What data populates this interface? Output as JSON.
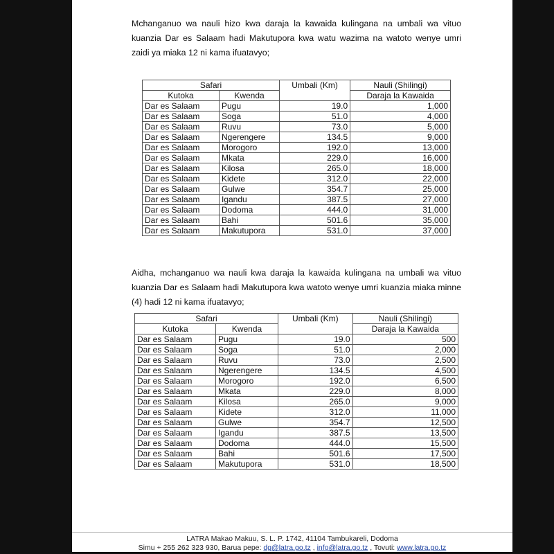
{
  "paragraph1": "Mchanganuo wa nauli hizo kwa daraja la kawaida kulingana na umbali wa vituo kuanzia Dar es Salaam hadi Makutupora kwa watu wazima na watoto wenye umri zaidi ya miaka 12 ni kama ifuatavyo;",
  "paragraph2": "Aidha, mchanganuo wa nauli kwa daraja la kawaida kulingana na umbali wa vituo kuanzia Dar es Salaam hadi Makutupora kwa  watoto wenye umri kuanzia miaka minne (4) hadi 12 ni kama ifuatavyo;",
  "headers": {
    "safari": "Safari",
    "kutoka": "Kutoka",
    "kwenda": "Kwenda",
    "umbali": "Umbali (Km)",
    "nauli": "Nauli (Shilingi)",
    "daraja": "Daraja la Kawaida"
  },
  "table1": [
    [
      "Dar es Salaam",
      "Pugu",
      "19.0",
      "1,000"
    ],
    [
      "Dar es Salaam",
      "Soga",
      "51.0",
      "4,000"
    ],
    [
      "Dar es Salaam",
      "Ruvu",
      "73.0",
      "5,000"
    ],
    [
      "Dar es Salaam",
      "Ngerengere",
      "134.5",
      "9,000"
    ],
    [
      "Dar es Salaam",
      "Morogoro",
      "192.0",
      "13,000"
    ],
    [
      "Dar es Salaam",
      "Mkata",
      "229.0",
      "16,000"
    ],
    [
      "Dar es Salaam",
      "Kilosa",
      "265.0",
      "18,000"
    ],
    [
      "Dar es Salaam",
      "Kidete",
      "312.0",
      "22,000"
    ],
    [
      "Dar es Salaam",
      "Gulwe",
      "354.7",
      "25,000"
    ],
    [
      "Dar es Salaam",
      "Igandu",
      "387.5",
      "27,000"
    ],
    [
      "Dar es Salaam",
      "Dodoma",
      "444.0",
      "31,000"
    ],
    [
      "Dar es Salaam",
      "Bahi",
      "501.6",
      "35,000"
    ],
    [
      "Dar es Salaam",
      "Makutupora",
      "531.0",
      "37,000"
    ]
  ],
  "table2": [
    [
      "Dar es Salaam",
      "Pugu",
      "19.0",
      "500"
    ],
    [
      "Dar es Salaam",
      "Soga",
      "51.0",
      "2,000"
    ],
    [
      "Dar es Salaam",
      "Ruvu",
      "73.0",
      "2,500"
    ],
    [
      "Dar es Salaam",
      "Ngerengere",
      "134.5",
      "4,500"
    ],
    [
      "Dar es Salaam",
      "Morogoro",
      "192.0",
      "6,500"
    ],
    [
      "Dar es Salaam",
      "Mkata",
      "229.0",
      "8,000"
    ],
    [
      "Dar es Salaam",
      "Kilosa",
      "265.0",
      "9,000"
    ],
    [
      "Dar es Salaam",
      "Kidete",
      "312.0",
      "11,000"
    ],
    [
      "Dar es Salaam",
      "Gulwe",
      "354.7",
      "12,500"
    ],
    [
      "Dar es Salaam",
      "Igandu",
      "387.5",
      "13,500"
    ],
    [
      "Dar es Salaam",
      "Dodoma",
      "444.0",
      "15,500"
    ],
    [
      "Dar es Salaam",
      "Bahi",
      "501.6",
      "17,500"
    ],
    [
      "Dar es Salaam",
      "Makutupora",
      "531.0",
      "18,500"
    ]
  ],
  "footer": {
    "line1": "LATRA Makao Makuu, S. L. P. 1742, 41104 Tambukareli, Dodoma",
    "simu": "Simu + 255 262 323 930, Barua pepe: ",
    "email1": "dg@latra.go.tz",
    "sep": " , ",
    "email2": "info@latra.go.tz",
    "tovuti": " , Tovuti: ",
    "website": "www.latra.go.tz"
  }
}
